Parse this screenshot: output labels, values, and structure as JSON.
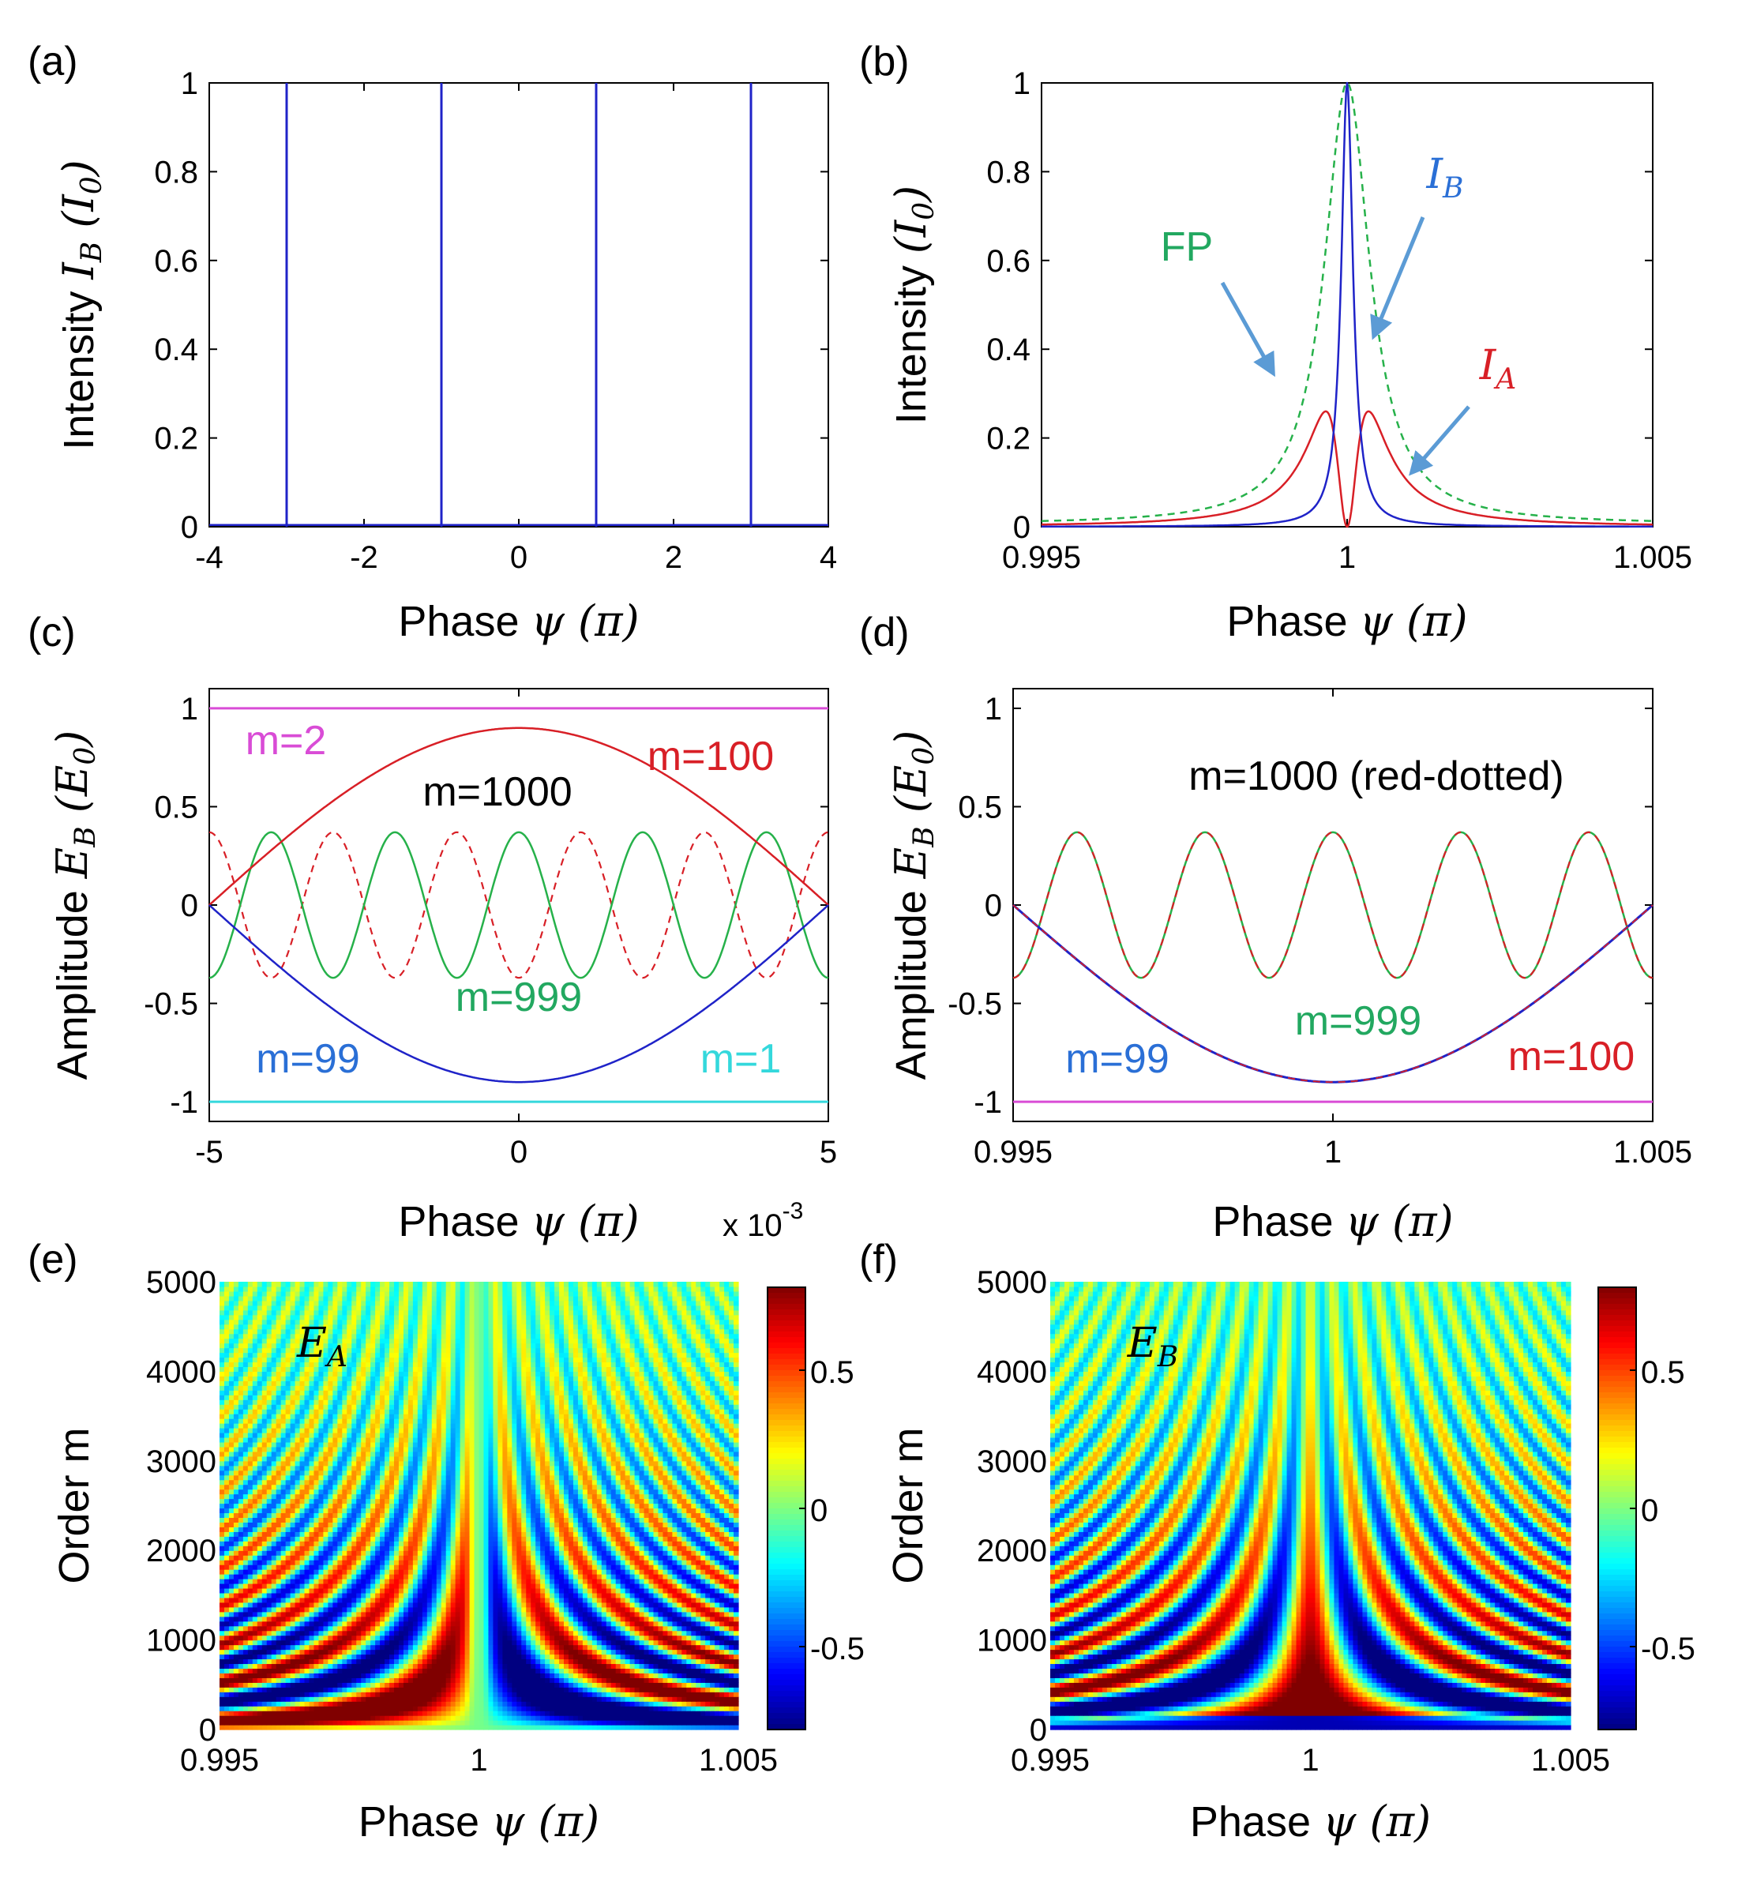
{
  "figure": {
    "colors": {
      "blue": "#1f23c8",
      "red": "#d81f26",
      "green": "#26b14a",
      "magenta": "#d94cd6",
      "cyan": "#34d8dc",
      "ann_blue": "#2a6fd6",
      "ann_green": "#22a860",
      "arrow": "#5b9bd5"
    },
    "x_label_prefix": "Phase",
    "x_label_symbol": "ψ (π)",
    "a_ylabel_prefix": "Intensity",
    "a_ylabel_symbol": "I",
    "a_ylabel_sub": "B",
    "a_ylabel_suffix": "(I",
    "a_ylabel_suffix_sub": "0",
    "b_ylabel_prefix": "Intensity",
    "b_ylabel_symbol": "(I",
    "b_ylabel_sub": "0",
    "cd_ylabel_prefix": "Amplitude",
    "cd_ylabel_symbol": "E",
    "cd_ylabel_sub": "B",
    "cd_ylabel_suffix": "(E",
    "cd_ylabel_suffix_sub": "0",
    "ef_ylabel": "Order m"
  },
  "chart_data": [
    {
      "id": "a",
      "panel_label": "(a)",
      "type": "line",
      "xlim": [
        -4,
        4
      ],
      "ylim": [
        0,
        1
      ],
      "xticks": [
        "-4",
        "-2",
        "0",
        "2",
        "4"
      ],
      "yticks": [
        "0",
        "0.2",
        "0.4",
        "0.6",
        "0.8",
        "1"
      ],
      "series": [
        {
          "color": "#1f23c8",
          "x": [
            -3,
            -1,
            1,
            3
          ],
          "y": [
            1,
            1,
            1,
            1
          ],
          "note": "sharp resonance spikes"
        }
      ]
    },
    {
      "id": "b",
      "panel_label": "(b)",
      "type": "line",
      "xlim": [
        0.995,
        1.005
      ],
      "ylim": [
        0,
        1
      ],
      "xticks": [
        "0.995",
        "1",
        "1.005"
      ],
      "yticks": [
        "0",
        "0.2",
        "0.4",
        "0.6",
        "0.8",
        "1"
      ],
      "series": [
        {
          "name": "FP",
          "color": "#26b14a",
          "dashed": true,
          "peak": 1.0,
          "center": 1.0,
          "halfwidth": 0.00033
        },
        {
          "name": "I_B",
          "color": "#1f23c8",
          "peak": 1.0,
          "center": 1.0,
          "halfwidth": 0.00012
        },
        {
          "name": "I_A",
          "color": "#d81f26",
          "peak": 0.26,
          "peak_positions": [
            0.99965,
            1.00035
          ],
          "value_at_center": 0
        }
      ],
      "annotations": [
        "FP",
        "I_B",
        "I_A"
      ]
    },
    {
      "id": "c",
      "panel_label": "(c)",
      "type": "line",
      "xlim": [
        -5,
        5
      ],
      "x_multiplier": "x 10",
      "x_multiplier_exp": "-3",
      "ylim": [
        -1.1,
        1.1
      ],
      "xticks": [
        "-5",
        "0",
        "5"
      ],
      "yticks": [
        "-1",
        "-0.5",
        "0",
        "0.5",
        "1"
      ],
      "series": [
        {
          "name": "m=2",
          "color": "#d94cd6",
          "y_const": 1.0
        },
        {
          "name": "m=1",
          "color": "#34d8dc",
          "y_const": -1.0
        },
        {
          "name": "m=100",
          "color": "#d81f26",
          "amplitude": 0.9,
          "shape": "+cos half"
        },
        {
          "name": "m=99",
          "color": "#1f23c8",
          "amplitude": 0.9,
          "shape": "-cos half"
        },
        {
          "name": "m=999",
          "color": "#26b14a",
          "amplitude": 0.37,
          "periods_per_unit": 0.5
        },
        {
          "name": "m=1000",
          "color": "#d81f26",
          "dashed": true,
          "amplitude": 0.37,
          "periods_per_unit": 0.5
        }
      ],
      "labels": [
        "m=2",
        "m=100",
        "m=1000",
        "m=999",
        "m=99",
        "m=1"
      ]
    },
    {
      "id": "d",
      "panel_label": "(d)",
      "type": "line",
      "xlim": [
        0.995,
        1.005
      ],
      "ylim": [
        -1.1,
        1.1
      ],
      "xticks": [
        "0.995",
        "1",
        "1.005"
      ],
      "yticks": [
        "-1",
        "-0.5",
        "0",
        "0.5",
        "1"
      ],
      "series": [
        {
          "name": "m=99",
          "color": "#1f23c8",
          "amplitude": 0.9
        },
        {
          "name": "m=100",
          "color": "#d81f26",
          "amplitude": 0.9
        },
        {
          "name": "m=999",
          "color": "#26b14a",
          "amplitude": 0.37,
          "cycles": 5
        },
        {
          "name": "m=1000",
          "color": "#d81f26",
          "dashed": true,
          "amplitude": 0.37,
          "cycles": 5
        },
        {
          "color": "#d94cd6",
          "y_const": -1.0
        }
      ],
      "labels": [
        "m=1000 (red-dotted)",
        "m=999",
        "m=99",
        "m=100"
      ]
    },
    {
      "id": "e",
      "panel_label": "(e)",
      "type": "heatmap",
      "field_label": "E",
      "field_sub": "A",
      "xlim": [
        0.995,
        1.005
      ],
      "ylim": [
        0,
        5000
      ],
      "xticks": [
        "0.995",
        "1",
        "1.005"
      ],
      "yticks": [
        "0",
        "1000",
        "2000",
        "3000",
        "4000",
        "5000"
      ],
      "colorbar_ticks": [
        "0.5",
        "0",
        "-0.5"
      ],
      "colorbar_range": [
        -0.8,
        0.8
      ]
    },
    {
      "id": "f",
      "panel_label": "(f)",
      "type": "heatmap",
      "field_label": "E",
      "field_sub": "B",
      "xlim": [
        0.995,
        1.005
      ],
      "ylim": [
        0,
        5000
      ],
      "xticks": [
        "0.995",
        "1",
        "1.005"
      ],
      "yticks": [
        "0",
        "1000",
        "2000",
        "3000",
        "4000",
        "5000"
      ],
      "colorbar_ticks": [
        "0.5",
        "0",
        "-0.5"
      ],
      "colorbar_range": [
        -0.8,
        0.8
      ]
    }
  ]
}
